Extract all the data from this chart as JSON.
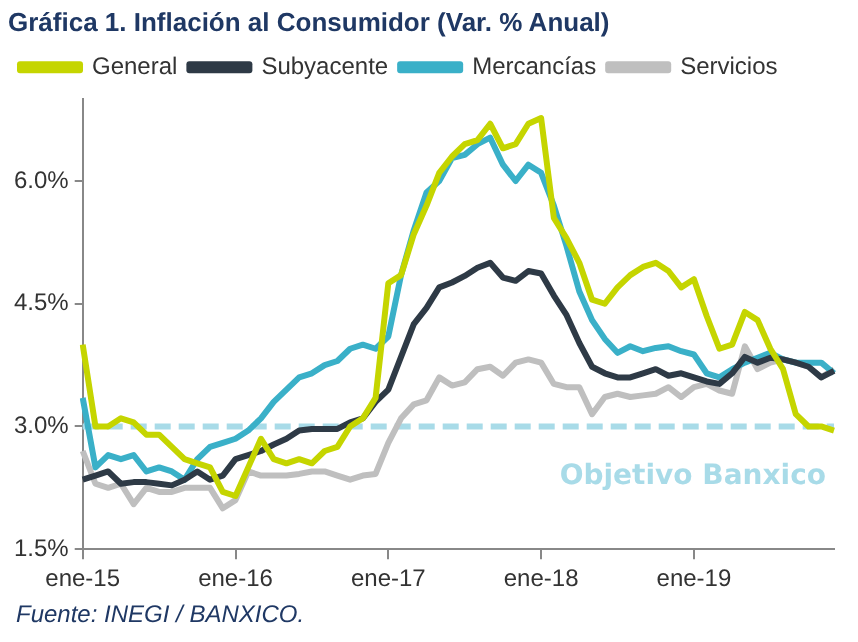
{
  "chart_data": {
    "type": "line",
    "title": "Gráfica 1. Inflación al Consumidor (Var. % Anual)",
    "categories": [
      "ene-15",
      null,
      null,
      null,
      null,
      null,
      null,
      null,
      null,
      null,
      null,
      null,
      "ene-16",
      null,
      null,
      null,
      null,
      null,
      null,
      null,
      null,
      null,
      null,
      null,
      "ene-17",
      null,
      null,
      null,
      null,
      null,
      null,
      null,
      null,
      null,
      null,
      null,
      "ene-18",
      null,
      null,
      null,
      null,
      null,
      null,
      null,
      null,
      null,
      null,
      null,
      "ene-19",
      null,
      null,
      null,
      null,
      null,
      null,
      null,
      null,
      null,
      null,
      null
    ],
    "series": [
      {
        "name": "General",
        "color": "#c5d500",
        "values": [
          4.0,
          3.0,
          3.0,
          3.1,
          3.05,
          2.9,
          2.9,
          2.75,
          2.6,
          2.55,
          2.5,
          2.2,
          2.15,
          2.5,
          2.85,
          2.6,
          2.55,
          2.6,
          2.55,
          2.7,
          2.75,
          3.0,
          3.1,
          3.35,
          4.75,
          4.85,
          5.35,
          5.7,
          6.1,
          6.3,
          6.45,
          6.5,
          6.7,
          6.4,
          6.45,
          6.7,
          6.77,
          5.55,
          5.3,
          5.0,
          4.55,
          4.5,
          4.7,
          4.85,
          4.95,
          5.0,
          4.9,
          4.7,
          4.8,
          4.35,
          3.95,
          4.0,
          4.4,
          4.3,
          3.95,
          3.7,
          3.15,
          3.0,
          3.0,
          2.95
        ]
      },
      {
        "name": "Subyacente",
        "color": "#2e3a46",
        "values": [
          2.35,
          2.4,
          2.45,
          2.3,
          2.32,
          2.32,
          2.3,
          2.28,
          2.35,
          2.45,
          2.35,
          2.4,
          2.6,
          2.65,
          2.7,
          2.78,
          2.85,
          2.95,
          2.97,
          2.97,
          2.97,
          3.05,
          3.1,
          3.3,
          3.45,
          3.85,
          4.25,
          4.45,
          4.7,
          4.76,
          4.84,
          4.94,
          5.0,
          4.82,
          4.78,
          4.9,
          4.87,
          4.6,
          4.36,
          4.02,
          3.73,
          3.65,
          3.6,
          3.6,
          3.65,
          3.7,
          3.62,
          3.65,
          3.6,
          3.55,
          3.52,
          3.65,
          3.85,
          3.78,
          3.84,
          3.82,
          3.78,
          3.73,
          3.6,
          3.68
        ]
      },
      {
        "name": "Mercancías",
        "color": "#3ab0c8",
        "values": [
          3.35,
          2.5,
          2.65,
          2.6,
          2.65,
          2.45,
          2.5,
          2.45,
          2.35,
          2.6,
          2.75,
          2.8,
          2.85,
          2.95,
          3.1,
          3.3,
          3.45,
          3.6,
          3.65,
          3.75,
          3.8,
          3.95,
          4.0,
          3.95,
          4.1,
          4.85,
          5.4,
          5.86,
          6.0,
          6.28,
          6.32,
          6.45,
          6.53,
          6.2,
          6.0,
          6.2,
          6.1,
          5.7,
          5.2,
          4.65,
          4.3,
          4.07,
          3.9,
          3.98,
          3.92,
          3.96,
          3.98,
          3.92,
          3.88,
          3.65,
          3.6,
          3.7,
          3.78,
          3.84,
          3.9,
          3.82,
          3.78,
          3.78,
          3.78,
          3.65
        ]
      },
      {
        "name": "Servicios",
        "color": "#bfbfbf",
        "values": [
          2.7,
          2.3,
          2.25,
          2.3,
          2.05,
          2.25,
          2.2,
          2.2,
          2.25,
          2.25,
          2.25,
          2.0,
          2.1,
          2.45,
          2.4,
          2.4,
          2.4,
          2.42,
          2.45,
          2.45,
          2.4,
          2.35,
          2.4,
          2.42,
          2.8,
          3.1,
          3.27,
          3.32,
          3.6,
          3.5,
          3.54,
          3.7,
          3.73,
          3.62,
          3.78,
          3.82,
          3.78,
          3.52,
          3.48,
          3.48,
          3.15,
          3.36,
          3.4,
          3.36,
          3.38,
          3.4,
          3.48,
          3.36,
          3.48,
          3.52,
          3.44,
          3.4,
          3.98,
          3.7,
          3.78,
          3.82,
          3.78,
          3.73,
          3.6,
          3.7
        ]
      }
    ],
    "ylim": [
      1.5,
      7
    ],
    "yticks": [
      {
        "value": 1.5,
        "label": "1.5%"
      },
      {
        "value": 3,
        "label": "3.0%"
      },
      {
        "value": 4.5,
        "label": "4.5%"
      },
      {
        "value": 6,
        "label": "6.0%"
      }
    ],
    "ref_lines": [
      {
        "axis": "y",
        "value": 3,
        "label": "Objetivo Banxico",
        "color": "#a8dbe8",
        "line_style": "dashed"
      }
    ],
    "legend": "top",
    "grid": false,
    "marker": "none",
    "line_style": "solid",
    "annotations": [
      "Fuente: INEGI / BANXICO."
    ]
  }
}
